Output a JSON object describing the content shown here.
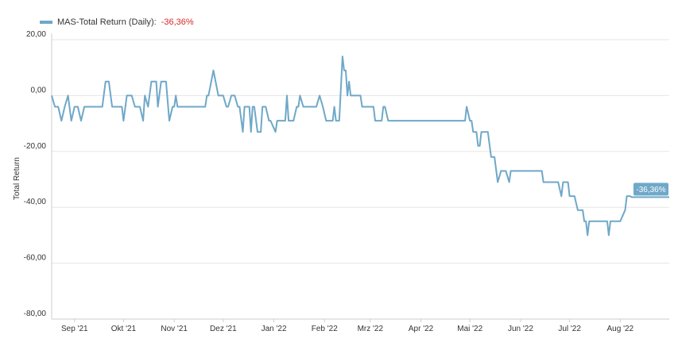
{
  "legend": {
    "series_name": "MAS-Total Return (Daily):",
    "value": "-36,36%"
  },
  "colors": {
    "line": "#6fa8c8",
    "grid": "#e6e6e6",
    "axis": "#cccccc",
    "legend_value": "#d62728",
    "flag": "#6fa8c8"
  },
  "chart_data": {
    "type": "line",
    "ylabel": "Total Return",
    "ylim": [
      -80,
      20
    ],
    "y_ticks": [
      20,
      0,
      -20,
      -40,
      -60,
      -80
    ],
    "y_tick_labels": [
      "20,00",
      "0,00",
      "-20,00",
      "-40,00",
      "-60,00",
      "-80,00"
    ],
    "x_ticks": [
      {
        "label": "Sep '21",
        "date": "2021-09-01"
      },
      {
        "label": "Okt '21",
        "date": "2021-10-01"
      },
      {
        "label": "Nov '21",
        "date": "2021-11-01"
      },
      {
        "label": "Dez '21",
        "date": "2021-12-01"
      },
      {
        "label": "Jan '22",
        "date": "2022-01-01"
      },
      {
        "label": "Feb '22",
        "date": "2022-02-01"
      },
      {
        "label": "Mrz '22",
        "date": "2022-03-01"
      },
      {
        "label": "Apr '22",
        "date": "2022-04-01"
      },
      {
        "label": "Mai '22",
        "date": "2022-05-01"
      },
      {
        "label": "Jun '22",
        "date": "2022-06-01"
      },
      {
        "label": "Jul '22",
        "date": "2022-07-01"
      },
      {
        "label": "Aug '22",
        "date": "2022-08-01"
      }
    ],
    "xlim": [
      "2021-08-18",
      "2022-08-31"
    ],
    "last_value_label": "-36,36%",
    "series": [
      {
        "name": "MAS-Total Return (Daily)",
        "points": [
          [
            "2021-08-18",
            0
          ],
          [
            "2021-08-20",
            -4
          ],
          [
            "2021-08-22",
            -4
          ],
          [
            "2021-08-24",
            -9
          ],
          [
            "2021-08-26",
            -4
          ],
          [
            "2021-08-28",
            0
          ],
          [
            "2021-08-30",
            -9
          ],
          [
            "2021-09-01",
            -4
          ],
          [
            "2021-09-03",
            -4
          ],
          [
            "2021-09-05",
            -9
          ],
          [
            "2021-09-07",
            -4
          ],
          [
            "2021-09-15",
            -4
          ],
          [
            "2021-09-18",
            -4
          ],
          [
            "2021-09-20",
            5
          ],
          [
            "2021-09-22",
            5
          ],
          [
            "2021-09-24",
            -4
          ],
          [
            "2021-09-30",
            -4
          ],
          [
            "2021-10-01",
            -9
          ],
          [
            "2021-10-03",
            0
          ],
          [
            "2021-10-06",
            0
          ],
          [
            "2021-10-08",
            -4
          ],
          [
            "2021-10-11",
            -4
          ],
          [
            "2021-10-13",
            -9
          ],
          [
            "2021-10-14",
            0
          ],
          [
            "2021-10-16",
            -4
          ],
          [
            "2021-10-18",
            5
          ],
          [
            "2021-10-21",
            5
          ],
          [
            "2021-10-22",
            -4
          ],
          [
            "2021-10-24",
            5
          ],
          [
            "2021-10-27",
            5
          ],
          [
            "2021-10-29",
            -9
          ],
          [
            "2021-10-31",
            -4
          ],
          [
            "2021-11-01",
            -4
          ],
          [
            "2021-11-02",
            0
          ],
          [
            "2021-11-03",
            -4
          ],
          [
            "2021-11-20",
            -4
          ],
          [
            "2021-11-21",
            0
          ],
          [
            "2021-11-22",
            0
          ],
          [
            "2021-11-25",
            9
          ],
          [
            "2021-11-28",
            0
          ],
          [
            "2021-12-01",
            0
          ],
          [
            "2021-12-03",
            -4
          ],
          [
            "2021-12-04",
            -4
          ],
          [
            "2021-12-06",
            0
          ],
          [
            "2021-12-08",
            0
          ],
          [
            "2021-12-10",
            -4
          ],
          [
            "2021-12-11",
            -4
          ],
          [
            "2021-12-13",
            -13
          ],
          [
            "2021-12-14",
            -4
          ],
          [
            "2021-12-17",
            -4
          ],
          [
            "2021-12-18",
            -13
          ],
          [
            "2021-12-19",
            -4
          ],
          [
            "2021-12-20",
            -4
          ],
          [
            "2021-12-22",
            -13
          ],
          [
            "2021-12-24",
            -13
          ],
          [
            "2021-12-25",
            -4
          ],
          [
            "2021-12-27",
            -4
          ],
          [
            "2021-12-29",
            -9
          ],
          [
            "2021-12-30",
            -9
          ],
          [
            "2022-01-02",
            -13
          ],
          [
            "2022-01-03",
            -9
          ],
          [
            "2022-01-08",
            -9
          ],
          [
            "2022-01-09",
            0
          ],
          [
            "2022-01-10",
            -9
          ],
          [
            "2022-01-13",
            -9
          ],
          [
            "2022-01-15",
            -4
          ],
          [
            "2022-01-16",
            -4
          ],
          [
            "2022-01-17",
            0
          ],
          [
            "2022-01-19",
            -4
          ],
          [
            "2022-01-27",
            -4
          ],
          [
            "2022-01-29",
            0
          ],
          [
            "2022-01-31",
            -4
          ],
          [
            "2022-02-02",
            -9
          ],
          [
            "2022-02-06",
            -9
          ],
          [
            "2022-02-07",
            -4
          ],
          [
            "2022-02-08",
            -9
          ],
          [
            "2022-02-10",
            -9
          ],
          [
            "2022-02-12",
            14
          ],
          [
            "2022-02-13",
            9
          ],
          [
            "2022-02-14",
            9
          ],
          [
            "2022-02-15",
            0
          ],
          [
            "2022-02-16",
            5
          ],
          [
            "2022-02-17",
            0
          ],
          [
            "2022-02-23",
            0
          ],
          [
            "2022-02-24",
            -4
          ],
          [
            "2022-03-03",
            -4
          ],
          [
            "2022-03-04",
            -9
          ],
          [
            "2022-03-08",
            -9
          ],
          [
            "2022-03-09",
            -4
          ],
          [
            "2022-03-10",
            -4
          ],
          [
            "2022-03-12",
            -9
          ],
          [
            "2022-04-28",
            -9
          ],
          [
            "2022-04-29",
            -4
          ],
          [
            "2022-05-01",
            -9
          ],
          [
            "2022-05-02",
            -9
          ],
          [
            "2022-05-03",
            -13
          ],
          [
            "2022-05-05",
            -13
          ],
          [
            "2022-05-06",
            -18
          ],
          [
            "2022-05-07",
            -18
          ],
          [
            "2022-05-08",
            -13
          ],
          [
            "2022-05-12",
            -13
          ],
          [
            "2022-05-14",
            -22
          ],
          [
            "2022-05-16",
            -22
          ],
          [
            "2022-05-18",
            -31
          ],
          [
            "2022-05-20",
            -27
          ],
          [
            "2022-05-23",
            -27
          ],
          [
            "2022-05-25",
            -31
          ],
          [
            "2022-05-26",
            -27
          ],
          [
            "2022-06-14",
            -27
          ],
          [
            "2022-06-15",
            -31
          ],
          [
            "2022-06-24",
            -31
          ],
          [
            "2022-06-26",
            -36
          ],
          [
            "2022-06-27",
            -31
          ],
          [
            "2022-06-30",
            -31
          ],
          [
            "2022-07-01",
            -36
          ],
          [
            "2022-07-04",
            -36
          ],
          [
            "2022-07-06",
            -41
          ],
          [
            "2022-07-09",
            -41
          ],
          [
            "2022-07-10",
            -45
          ],
          [
            "2022-07-11",
            -45
          ],
          [
            "2022-07-12",
            -50
          ],
          [
            "2022-07-13",
            -45
          ],
          [
            "2022-07-24",
            -45
          ],
          [
            "2022-07-25",
            -50
          ],
          [
            "2022-07-26",
            -45
          ],
          [
            "2022-08-01",
            -45
          ],
          [
            "2022-08-04",
            -41
          ],
          [
            "2022-08-05",
            -36
          ],
          [
            "2022-08-07",
            -36
          ],
          [
            "2022-08-08",
            -36.36
          ],
          [
            "2022-08-31",
            -36.36
          ]
        ]
      }
    ]
  }
}
